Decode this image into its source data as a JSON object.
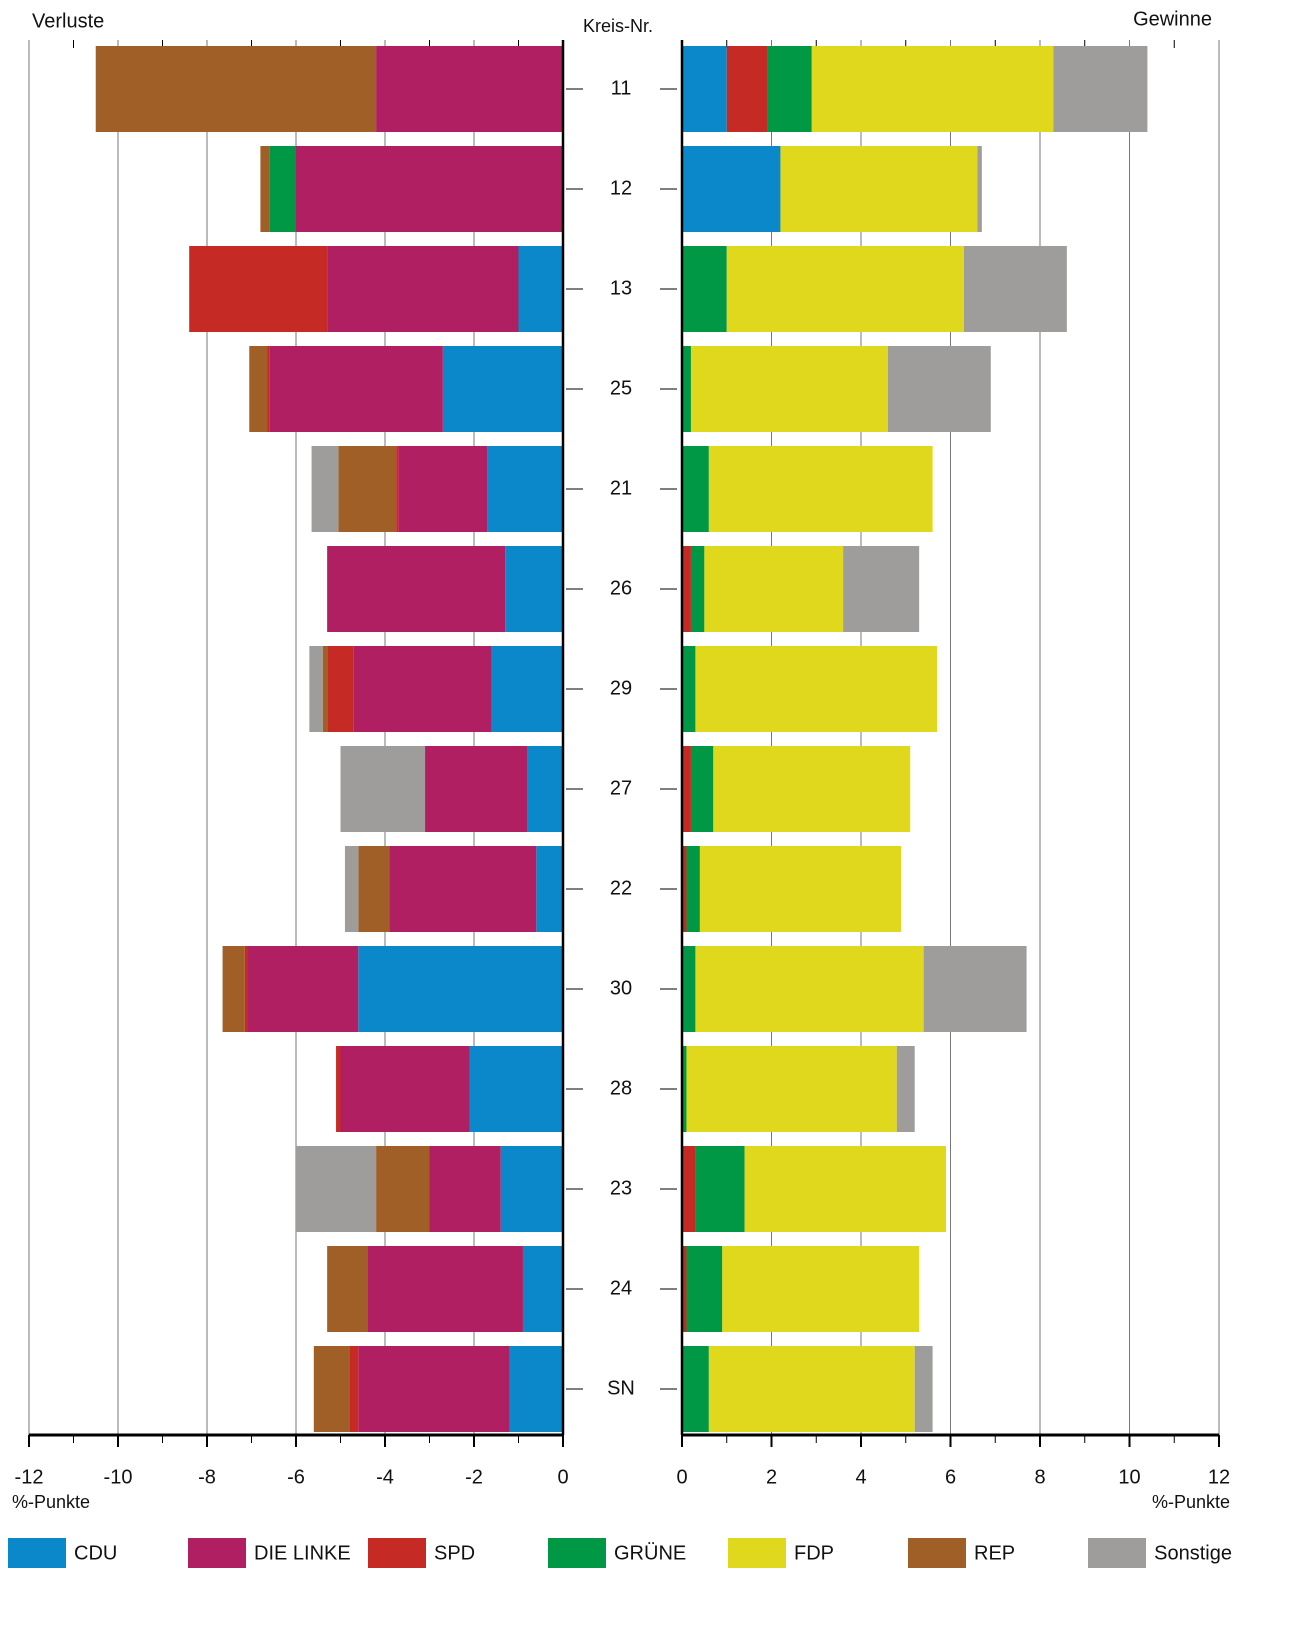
{
  "chart_data": {
    "type": "diverging_stacked_bar",
    "left_title": "Verluste",
    "right_title": "Gewinne",
    "category_title": "Kreis-Nr.",
    "categories": [
      "11",
      "12",
      "13",
      "25",
      "21",
      "26",
      "29",
      "27",
      "22",
      "30",
      "28",
      "23",
      "24",
      "SN"
    ],
    "series": [
      {
        "name": "CDU",
        "color": "#0a88c9",
        "values": [
          1.0,
          2.2,
          -1.0,
          -2.7,
          -1.7,
          -1.3,
          -1.6,
          -0.8,
          -0.6,
          -4.6,
          -2.1,
          -1.4,
          -0.9,
          -1.2
        ]
      },
      {
        "name": "DIE LINKE",
        "color": "#b01f61",
        "values": [
          -4.2,
          -6.0,
          -4.3,
          -3.9,
          -2.0,
          -4.0,
          -3.1,
          -2.3,
          -3.3,
          -2.5,
          -2.9,
          -1.6,
          -3.5,
          -3.4
        ]
      },
      {
        "name": "SPD",
        "color": "#c62a25",
        "values": [
          0.9,
          null,
          -3.1,
          -0.05,
          -0.05,
          0.2,
          -0.6,
          0.2,
          0.1,
          -0.05,
          -0.1,
          0.3,
          0.1,
          -0.2
        ]
      },
      {
        "name": "GRÜNE",
        "color": "#009845",
        "values": [
          1.0,
          -0.6,
          1.0,
          0.2,
          0.6,
          0.3,
          0.3,
          0.5,
          0.3,
          0.3,
          0.1,
          1.1,
          0.8,
          0.6
        ]
      },
      {
        "name": "FDP",
        "color": "#dfd81c",
        "values": [
          5.4,
          4.4,
          5.3,
          4.4,
          5.0,
          3.1,
          5.4,
          4.4,
          4.5,
          5.1,
          4.7,
          4.5,
          4.4,
          4.6
        ]
      },
      {
        "name": "REP",
        "color": "#a05f27",
        "values": [
          -6.3,
          -0.2,
          null,
          -0.4,
          -1.3,
          null,
          -0.1,
          null,
          -0.7,
          -0.5,
          null,
          -1.2,
          -0.9,
          -0.8
        ]
      },
      {
        "name": "Sonstige",
        "color": "#9e9d9b",
        "values": [
          2.1,
          0.1,
          2.3,
          2.3,
          -0.6,
          1.7,
          -0.3,
          -1.9,
          -0.3,
          2.3,
          0.4,
          -1.8,
          null,
          0.4
        ]
      }
    ],
    "left_axis": {
      "xlim": [
        -12,
        0
      ],
      "xticks": [
        -12,
        -10,
        -8,
        -6,
        -4,
        -2,
        0
      ],
      "minor_xticks": [
        -11,
        -9,
        -7,
        -5,
        -3,
        -1
      ],
      "label": "%-Punkte"
    },
    "right_axis": {
      "xlim": [
        0,
        12
      ],
      "xticks": [
        0,
        2,
        4,
        6,
        8,
        10,
        12
      ],
      "minor_xticks": [
        1,
        3,
        5,
        7,
        9,
        11
      ],
      "label": "%-Punkte"
    },
    "grid": true
  }
}
